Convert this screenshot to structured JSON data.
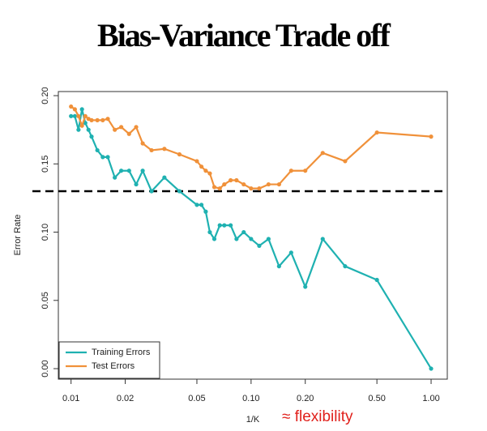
{
  "chart_data": {
    "type": "line",
    "title": "Bias-Variance Trade off",
    "x_label": "1/K",
    "y_label": "Error Rate",
    "annotation": "≈ flexibility",
    "log_x": true,
    "legend": "bottom-left",
    "x": [
      0.01,
      0.0105,
      0.011,
      0.0115,
      0.012,
      0.0125,
      0.013,
      0.014,
      0.015,
      0.016,
      0.0175,
      0.019,
      0.021,
      0.023,
      0.025,
      0.028,
      0.033,
      0.04,
      0.05,
      0.053,
      0.056,
      0.059,
      0.0625,
      0.067,
      0.071,
      0.077,
      0.083,
      0.091,
      0.1,
      0.111,
      0.125,
      0.143,
      0.167,
      0.2,
      0.25,
      0.333,
      0.5,
      1.0
    ],
    "series": [
      {
        "name": "Training Errors",
        "color": "#1fb1b1",
        "values": [
          0.185,
          0.185,
          0.175,
          0.19,
          0.18,
          0.175,
          0.17,
          0.16,
          0.155,
          0.155,
          0.14,
          0.145,
          0.145,
          0.135,
          0.145,
          0.13,
          0.14,
          0.13,
          0.12,
          0.12,
          0.115,
          0.1,
          0.095,
          0.105,
          0.105,
          0.105,
          0.095,
          0.1,
          0.095,
          0.09,
          0.095,
          0.075,
          0.085,
          0.06,
          0.095,
          0.075,
          0.065,
          0.0
        ]
      },
      {
        "name": "Test Errors",
        "color": "#f0913a",
        "values": [
          0.192,
          0.19,
          0.185,
          0.178,
          0.185,
          0.183,
          0.182,
          0.182,
          0.182,
          0.183,
          0.175,
          0.177,
          0.172,
          0.177,
          0.165,
          0.16,
          0.161,
          0.157,
          0.152,
          0.148,
          0.145,
          0.143,
          0.133,
          0.132,
          0.135,
          0.138,
          0.138,
          0.135,
          0.132,
          0.132,
          0.135,
          0.135,
          0.145,
          0.145,
          0.158,
          0.152,
          0.173,
          0.17
        ]
      }
    ],
    "hline": 0.13,
    "xlim": [
      0.0085,
      1.23
    ],
    "ylim": [
      -0.0077,
      0.203
    ],
    "xticks": [
      0.01,
      0.02,
      0.05,
      {
        "value": 0.1,
        "label": "0.10"
      },
      {
        "value": 0.2,
        "label": "0.20"
      },
      {
        "value": 0.5,
        "label": "0.50"
      },
      {
        "value": 1,
        "label": "1.00"
      }
    ],
    "yticks": [
      {
        "value": 0,
        "label": "0.00"
      },
      0.05,
      {
        "value": 0.1,
        "label": "0.10"
      },
      0.15,
      {
        "value": 0.2,
        "label": "0.20"
      }
    ]
  }
}
